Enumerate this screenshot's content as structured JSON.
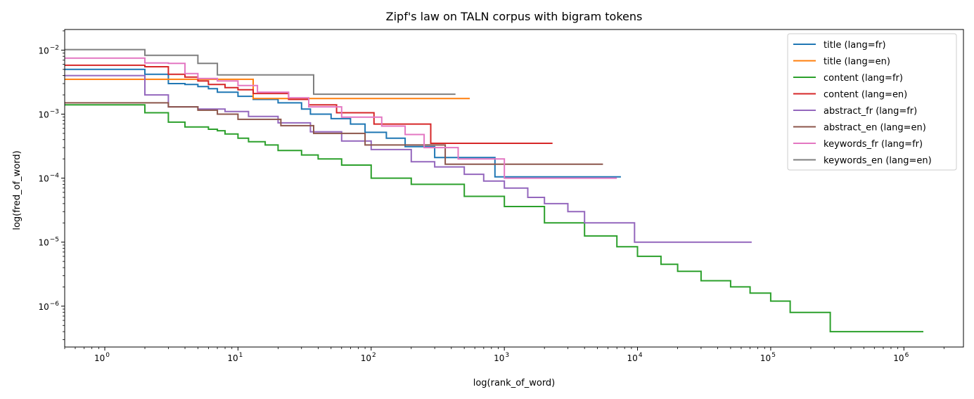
{
  "chart_data": {
    "type": "line",
    "title": "Zipf's law on TALN corpus with bigram tokens",
    "xlabel": "log(rank_of_word)",
    "ylabel": "log(fred_of_word)",
    "xscale": "log",
    "yscale": "log",
    "xlim": [
      0.5,
      2800000
    ],
    "ylim": [
      2.3e-07,
      0.021
    ],
    "x_ticks": [
      {
        "base": "10",
        "exp": "0",
        "value": 1
      },
      {
        "base": "10",
        "exp": "1",
        "value": 10
      },
      {
        "base": "10",
        "exp": "2",
        "value": 100
      },
      {
        "base": "10",
        "exp": "3",
        "value": 1000
      },
      {
        "base": "10",
        "exp": "4",
        "value": 10000
      },
      {
        "base": "10",
        "exp": "5",
        "value": 100000
      },
      {
        "base": "10",
        "exp": "6",
        "value": 1000000
      }
    ],
    "y_ticks": [
      {
        "base": "10",
        "exp": "−6",
        "value": 1e-06
      },
      {
        "base": "10",
        "exp": "−5",
        "value": 1e-05
      },
      {
        "base": "10",
        "exp": "−4",
        "value": 0.0001
      },
      {
        "base": "10",
        "exp": "−3",
        "value": 0.001
      },
      {
        "base": "10",
        "exp": "−2",
        "value": 0.01
      }
    ],
    "legend_position": "top-right",
    "series": [
      {
        "name": "title (lang=fr)",
        "color": "#1f77b4",
        "step": true,
        "x": [
          0.5,
          1,
          2,
          3,
          4,
          5,
          6,
          7,
          10,
          13,
          20,
          30,
          35,
          50,
          70,
          90,
          130,
          180,
          300,
          850,
          7500
        ],
        "y": [
          0.005,
          0.005,
          0.0042,
          0.003,
          0.0029,
          0.0027,
          0.0025,
          0.0022,
          0.0019,
          0.0017,
          0.0015,
          0.0012,
          0.001,
          0.00085,
          0.0007,
          0.00052,
          0.00042,
          0.00031,
          0.00021,
          0.000105,
          0.000105
        ]
      },
      {
        "name": "title (lang=en)",
        "color": "#ff7f0e",
        "step": true,
        "x": [
          0.5,
          12,
          13,
          40,
          550
        ],
        "y": [
          0.0035,
          0.0035,
          0.00175,
          0.00175,
          0.00175
        ]
      },
      {
        "name": "content (lang=fr)",
        "color": "#2ca02c",
        "step": true,
        "x": [
          0.5,
          1,
          2,
          3,
          4,
          6,
          7,
          8,
          10,
          12,
          16,
          20,
          30,
          40,
          60,
          100,
          200,
          500,
          1000,
          2000,
          4000,
          7000,
          10000,
          15000,
          20000,
          30000,
          50000,
          70000,
          100000,
          140000,
          280000,
          1400000
        ],
        "y": [
          0.0014,
          0.0014,
          0.00105,
          0.00075,
          0.00063,
          0.00058,
          0.00055,
          0.00049,
          0.00042,
          0.00037,
          0.00033,
          0.00027,
          0.00023,
          0.0002,
          0.00016,
          0.0001,
          8e-05,
          5.2e-05,
          3.6e-05,
          2e-05,
          1.25e-05,
          8.5e-06,
          6e-06,
          4.5e-06,
          3.5e-06,
          2.5e-06,
          2e-06,
          1.6e-06,
          1.2e-06,
          8e-07,
          4e-07,
          4e-07
        ]
      },
      {
        "name": "content (lang=en)",
        "color": "#d62728",
        "step": true,
        "x": [
          0.5,
          1,
          2,
          3,
          4,
          5,
          6,
          8,
          10,
          13,
          24,
          34,
          55,
          105,
          280,
          2300
        ],
        "y": [
          0.0058,
          0.0058,
          0.0055,
          0.0042,
          0.0038,
          0.0033,
          0.0029,
          0.0026,
          0.0024,
          0.0021,
          0.0017,
          0.0014,
          0.00105,
          0.0007,
          0.00035,
          0.00035
        ]
      },
      {
        "name": "abstract_fr (lang=fr)",
        "color": "#9467bd",
        "step": true,
        "x": [
          0.5,
          1,
          2,
          3,
          5,
          8,
          12,
          20,
          35,
          60,
          100,
          200,
          300,
          500,
          700,
          1000,
          1500,
          2000,
          3000,
          4000,
          9500,
          72000
        ],
        "y": [
          0.004,
          0.004,
          0.002,
          0.0013,
          0.0012,
          0.0011,
          0.00092,
          0.00073,
          0.00053,
          0.00038,
          0.00028,
          0.00018,
          0.00015,
          0.000115,
          9e-05,
          7e-05,
          5e-05,
          4e-05,
          3e-05,
          2e-05,
          1e-05,
          1e-05
        ]
      },
      {
        "name": "abstract_en (lang=en)",
        "color": "#8c564b",
        "step": true,
        "x": [
          0.5,
          2,
          3,
          4,
          5,
          7,
          10,
          20,
          21,
          34,
          37,
          87,
          90,
          350,
          360,
          5500
        ],
        "y": [
          0.0015,
          0.0015,
          0.0013,
          0.0013,
          0.00115,
          0.001,
          0.00083,
          0.00083,
          0.00066,
          0.00066,
          0.0005,
          0.0005,
          0.00033,
          0.00033,
          0.000165,
          0.000165
        ]
      },
      {
        "name": "keywords_fr (lang=fr)",
        "color": "#e377c2",
        "step": true,
        "x": [
          0.5,
          1,
          2,
          3,
          4,
          5,
          7,
          10,
          14,
          24,
          34,
          60,
          120,
          180,
          250,
          450,
          1000,
          7000
        ],
        "y": [
          0.0075,
          0.0075,
          0.0063,
          0.0062,
          0.0043,
          0.0036,
          0.0033,
          0.0028,
          0.0022,
          0.0018,
          0.0013,
          0.0009,
          0.00065,
          0.00048,
          0.0003,
          0.0002,
          0.0001,
          0.0001
        ]
      },
      {
        "name": "keywords_en (lang=en)",
        "color": "#7f7f7f",
        "step": true,
        "x": [
          0.5,
          1,
          2,
          4,
          5,
          6,
          7,
          36,
          37,
          430
        ],
        "y": [
          0.0102,
          0.0102,
          0.0083,
          0.0083,
          0.0062,
          0.0062,
          0.0041,
          0.0041,
          0.00205,
          0.00205
        ]
      }
    ]
  }
}
